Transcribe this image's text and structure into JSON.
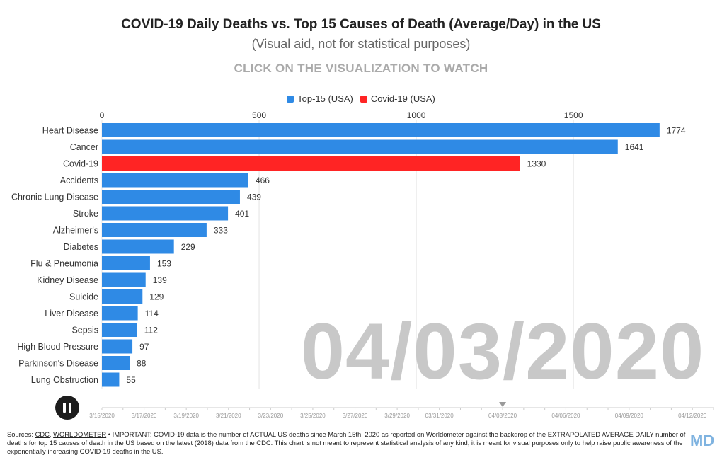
{
  "title": "COVID-19 Daily Deaths vs. Top 15 Causes of Death (Average/Day) in the US",
  "subtitle": "(Visual aid, not for statistical purposes)",
  "call_to_action": "CLICK ON THE VISUALIZATION TO WATCH",
  "current_date": "04/03/2020",
  "legend": [
    {
      "label": "Top-15 (USA)",
      "color": "#2f8ae5"
    },
    {
      "label": "Covid-19 (USA)",
      "color": "#ff2424"
    }
  ],
  "colors": {
    "top15": "#2f8ae5",
    "covid": "#ff2424",
    "grid": "#e4e4e4",
    "big_date": "#c8c8c8"
  },
  "chart_data": {
    "type": "bar",
    "orientation": "horizontal",
    "categories": [
      "Heart Disease",
      "Cancer",
      "Covid-19",
      "Accidents",
      "Chronic Lung Disease",
      "Stroke",
      "Alzheimer's",
      "Diabetes",
      "Flu & Pneumonia",
      "Kidney Disease",
      "Suicide",
      "Liver Disease",
      "Sepsis",
      "High Blood Pressure",
      "Parkinson's Disease",
      "Lung Obstruction"
    ],
    "values": [
      1774,
      1641,
      1330,
      466,
      439,
      401,
      333,
      229,
      153,
      139,
      129,
      114,
      112,
      97,
      88,
      55
    ],
    "highlight_category": "Covid-19",
    "xlim": [
      0,
      1950
    ],
    "x_ticks": [
      0,
      500,
      1000,
      1500
    ],
    "x_tick_labels": [
      "0",
      "500",
      "1000",
      "1500"
    ],
    "grid": true,
    "legend_position": "top-center"
  },
  "timeline": {
    "labels": [
      "3/15/2020",
      "3/17/2020",
      "3/19/2020",
      "3/21/2020",
      "3/23/2020",
      "3/25/2020",
      "3/27/2020",
      "3/29/2020",
      "03/31/2020",
      "04/03/2020",
      "04/06/2020",
      "04/09/2020",
      "04/12/2020"
    ],
    "days": [
      0,
      2,
      4,
      6,
      8,
      10,
      12,
      14,
      16,
      19,
      22,
      25,
      28
    ],
    "end_day": 29,
    "current_day": 19,
    "play_state": "playing"
  },
  "footer": {
    "sources_label": "Sources:",
    "source_links": [
      "CDC",
      "WORLDOMETER"
    ],
    "note": "• IMPORTANT: COVID-19 data is the number of ACTUAL US deaths since March 15th, 2020 as reported on Worldometer against the backdrop of the EXTRAPOLATED AVERAGE DAILY number of deaths for top 15 causes of death in the US based on the latest (2018) data from the CDC. This chart is not meant to represent statistical analysis of any kind, it is meant for visual purposes only to help raise public awareness of the exponentially increasing COVID-19 deaths in the US."
  },
  "brand": "MD"
}
